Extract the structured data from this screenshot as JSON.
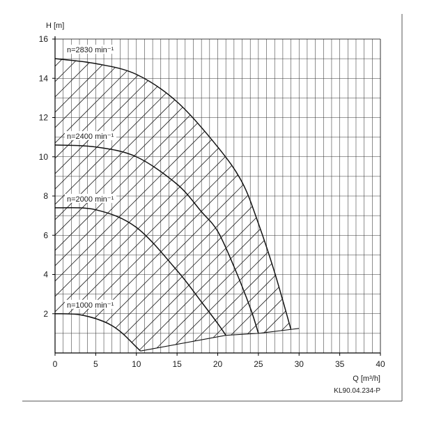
{
  "chart_data": {
    "type": "line",
    "title": "",
    "xlabel": "Q [m³/h]",
    "ylabel": "H [m]",
    "xlim": [
      0,
      40
    ],
    "ylim": [
      0,
      16
    ],
    "grid": true,
    "hatched_operating_region": true,
    "x_ticks": [
      "0",
      "5",
      "10",
      "15",
      "20",
      "25",
      "30",
      "35",
      "40"
    ],
    "y_ticks": [
      "2",
      "4",
      "6",
      "8",
      "10",
      "12",
      "14",
      "16"
    ],
    "series": [
      {
        "name": "n=2830 min⁻¹",
        "points": [
          [
            0,
            15.0
          ],
          [
            5,
            14.75
          ],
          [
            10,
            14.2
          ],
          [
            15,
            12.8
          ],
          [
            20,
            10.5
          ],
          [
            23,
            8.7
          ],
          [
            25,
            6.6
          ],
          [
            27,
            4.1
          ],
          [
            29,
            1.2
          ]
        ]
      },
      {
        "name": "n=2400 min⁻¹",
        "points": [
          [
            0,
            10.6
          ],
          [
            5,
            10.5
          ],
          [
            10,
            10.0
          ],
          [
            15,
            8.6
          ],
          [
            18,
            7.2
          ],
          [
            20,
            6.2
          ],
          [
            22,
            4.4
          ],
          [
            24,
            2.3
          ],
          [
            25,
            1.0
          ]
        ]
      },
      {
        "name": "n=2000 min⁻¹",
        "points": [
          [
            0,
            7.4
          ],
          [
            5,
            7.3
          ],
          [
            10,
            6.4
          ],
          [
            15,
            4.2
          ],
          [
            18,
            2.6
          ],
          [
            20,
            1.5
          ],
          [
            21,
            0.9
          ]
        ]
      },
      {
        "name": "n=1000 min⁻¹",
        "points": [
          [
            0,
            2.0
          ],
          [
            3,
            1.95
          ],
          [
            6,
            1.6
          ],
          [
            8,
            1.1
          ],
          [
            10,
            0.3
          ],
          [
            10.5,
            0.1
          ]
        ]
      }
    ],
    "boundary_points": [
      [
        10.5,
        0.1
      ],
      [
        21,
        0.9
      ],
      [
        25,
        1.0
      ],
      [
        29,
        1.2
      ],
      [
        30,
        1.25
      ]
    ],
    "figure_code": "KL90.04.234-P"
  }
}
